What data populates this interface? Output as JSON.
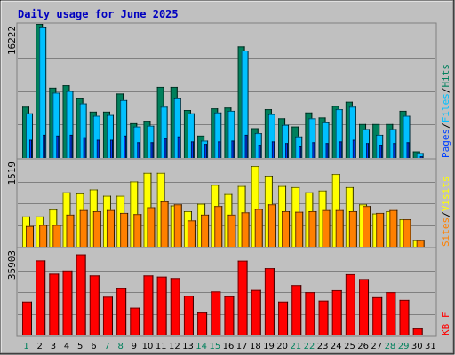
{
  "title": "Daily usage for June 2025",
  "colors": {
    "background": "#c0c0c0",
    "title_text": "#0000c0",
    "hits": "#00805c",
    "files": "#00c0ff",
    "pages": "#0040ff",
    "visits": "#ffff00",
    "sites": "#ff8000",
    "kbytes": "#ff0000",
    "day_label": "#000000",
    "weekend_label": "#00805c"
  },
  "chart_data": [
    {
      "type": "bar",
      "title": "",
      "ymax_label": "16222",
      "ylim": [
        0,
        16222
      ],
      "legend_placement": "right-vertical",
      "legend": [
        {
          "text": "Pages",
          "color_key": "pages"
        },
        {
          "text": "/",
          "color_key": "separator"
        },
        {
          "text": "Files",
          "color_key": "files"
        },
        {
          "text": "/",
          "color_key": "separator"
        },
        {
          "text": "Hits",
          "color_key": "hits"
        }
      ],
      "series": [
        {
          "name": "Hits",
          "color_key": "hits",
          "values": [
            6200,
            16222,
            8500,
            8800,
            7300,
            5600,
            5600,
            7800,
            4200,
            4500,
            8600,
            8600,
            5800,
            2700,
            6000,
            6100,
            13500,
            3600,
            5900,
            4800,
            3800,
            5500,
            4900,
            6300,
            6800,
            4100,
            4100,
            4100,
            5700,
            800,
            0
          ]
        },
        {
          "name": "Files",
          "color_key": "files",
          "values": [
            5400,
            15900,
            7900,
            8100,
            6600,
            5100,
            5200,
            7000,
            3800,
            3900,
            6200,
            7300,
            5400,
            2100,
            5500,
            5700,
            13000,
            3000,
            5300,
            4000,
            2600,
            4800,
            4300,
            5900,
            6200,
            3500,
            2800,
            3500,
            5100,
            600,
            0
          ]
        },
        {
          "name": "Pages",
          "color_key": "pages",
          "values": [
            2200,
            2800,
            2700,
            2800,
            2500,
            2200,
            2200,
            2700,
            1900,
            1900,
            2400,
            2600,
            2000,
            1700,
            2000,
            2100,
            2800,
            1600,
            2000,
            1800,
            1400,
            1900,
            1800,
            2000,
            2200,
            1800,
            1600,
            1800,
            1900,
            200,
            0
          ]
        }
      ]
    },
    {
      "type": "bar",
      "title": "",
      "ymax_label": "1519",
      "ylim": [
        0,
        1519
      ],
      "legend_placement": "right-vertical",
      "legend": [
        {
          "text": "Sites",
          "color_key": "sites"
        },
        {
          "text": "/",
          "color_key": "separator"
        },
        {
          "text": "Visits",
          "color_key": "visits"
        }
      ],
      "series": [
        {
          "name": "Visits",
          "color_key": "visits",
          "values": [
            530,
            530,
            650,
            950,
            930,
            1000,
            890,
            890,
            1140,
            1290,
            1290,
            720,
            620,
            750,
            1080,
            920,
            1060,
            1410,
            1240,
            1060,
            1040,
            950,
            980,
            1270,
            1040,
            740,
            580,
            620,
            480,
            120,
            0
          ]
        },
        {
          "name": "Sites",
          "color_key": "sites",
          "values": [
            360,
            380,
            380,
            560,
            640,
            620,
            640,
            590,
            570,
            690,
            790,
            740,
            460,
            560,
            710,
            560,
            600,
            660,
            740,
            620,
            610,
            620,
            640,
            640,
            620,
            710,
            590,
            640,
            480,
            120,
            0
          ]
        }
      ]
    },
    {
      "type": "bar",
      "title": "",
      "ymax_label": "35903",
      "ylim": [
        0,
        35903
      ],
      "legend_placement": "right-vertical",
      "legend": [
        {
          "text": "KB F",
          "color_key": "kbytes"
        }
      ],
      "series": [
        {
          "name": "KB F",
          "color_key": "kbytes",
          "values": [
            14000,
            31000,
            25500,
            26800,
            33500,
            24800,
            16000,
            19500,
            11500,
            24800,
            24300,
            23700,
            16400,
            9500,
            18200,
            16200,
            30900,
            18800,
            27800,
            14000,
            20800,
            17900,
            14400,
            18700,
            25300,
            23300,
            15800,
            17900,
            14700,
            2900,
            0
          ]
        }
      ]
    }
  ],
  "x_axis": {
    "labels": [
      "1",
      "2",
      "3",
      "4",
      "5",
      "6",
      "7",
      "8",
      "9",
      "10",
      "11",
      "12",
      "13",
      "14",
      "15",
      "16",
      "17",
      "18",
      "19",
      "20",
      "21",
      "22",
      "23",
      "24",
      "25",
      "26",
      "27",
      "28",
      "29",
      "30",
      "31"
    ],
    "weekend_days": [
      1,
      7,
      8,
      14,
      15,
      21,
      22,
      28,
      29
    ]
  }
}
